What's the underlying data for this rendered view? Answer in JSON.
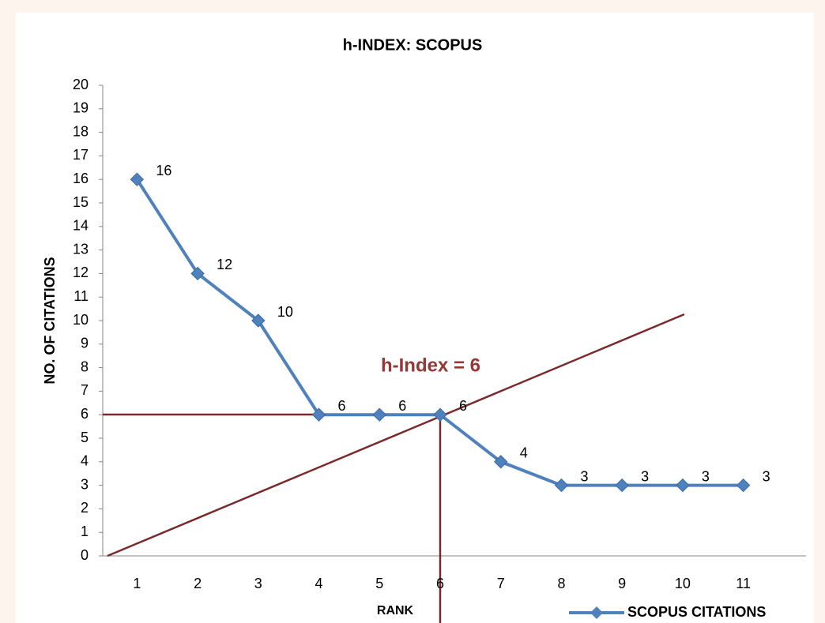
{
  "chart_data": {
    "type": "line",
    "title": "h-INDEX: SCOPUS",
    "x_label": "RANK",
    "y_label": "NO. OF CITATIONS",
    "annotation": "h-Index = 6",
    "categories": [
      "1",
      "2",
      "3",
      "4",
      "5",
      "6",
      "7",
      "8",
      "9",
      "10",
      "11"
    ],
    "series": [
      {
        "name": "SCOPUS CITATIONS",
        "color": "#4f81bd",
        "values": [
          16,
          12,
          10,
          6,
          6,
          6,
          4,
          3,
          3,
          3,
          3
        ]
      }
    ],
    "ylim": [
      0,
      20
    ],
    "yticks": [
      0,
      1,
      2,
      3,
      4,
      5,
      6,
      7,
      8,
      9,
      10,
      11,
      12,
      13,
      14,
      15,
      16,
      17,
      18,
      19,
      20
    ],
    "legend": "bottom-right"
  }
}
